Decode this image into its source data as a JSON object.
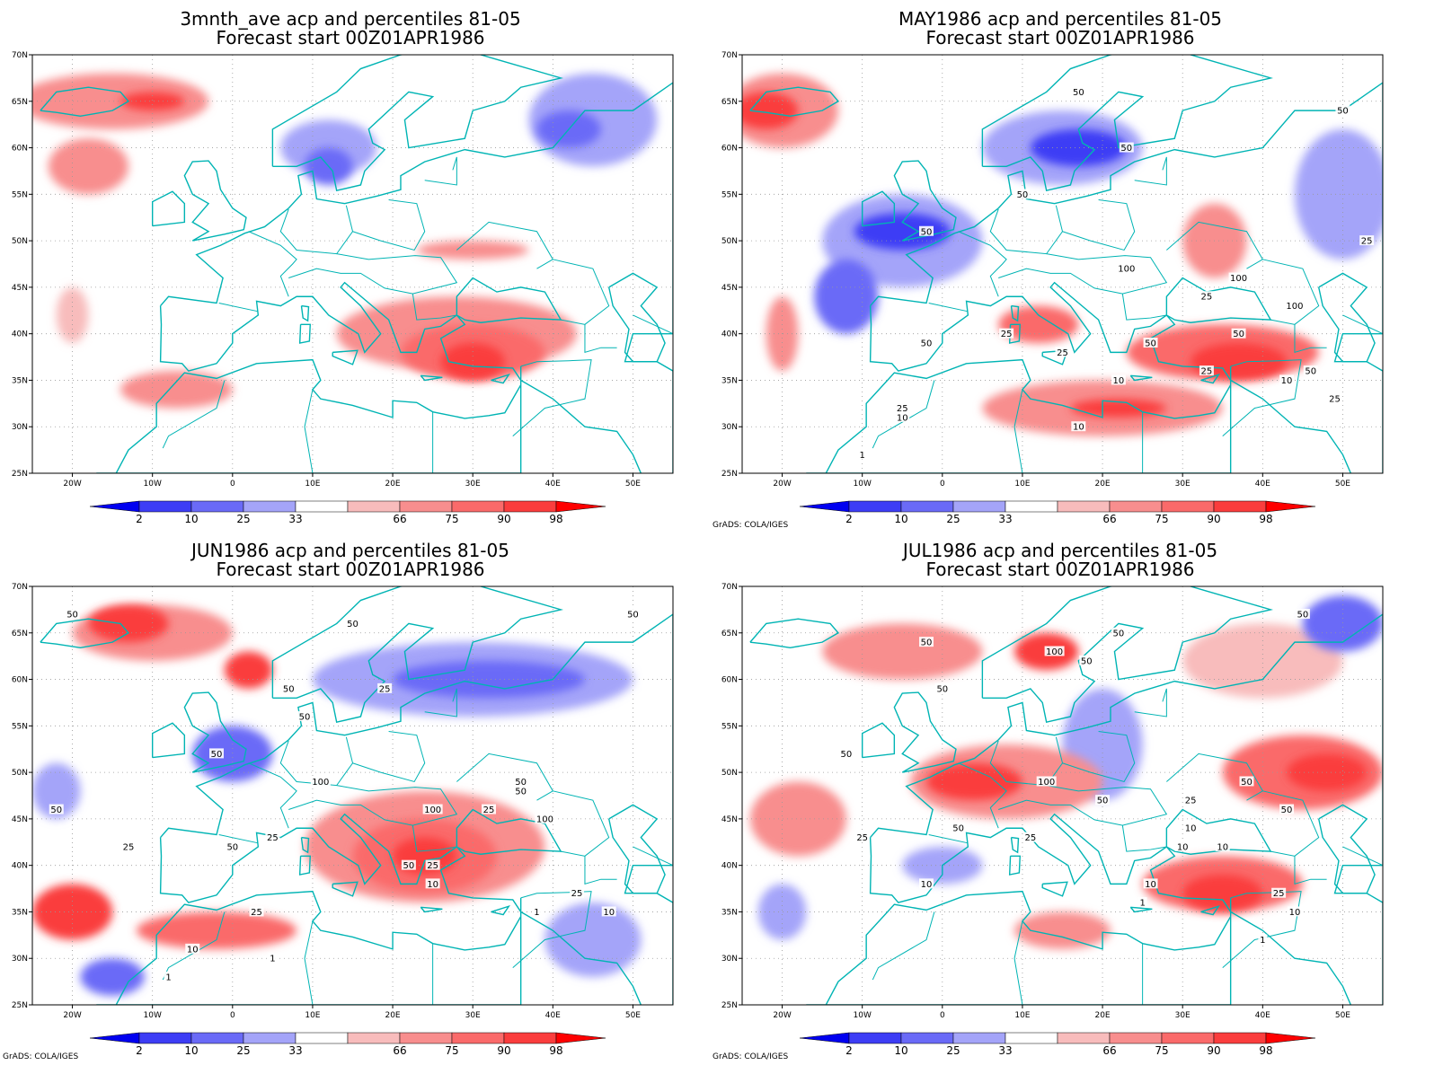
{
  "panels": [
    {
      "title_line1": "3mnth_ave acp and percentiles 81-05",
      "title_line2": "Forecast start 00Z01APR1986",
      "credit": "",
      "contour_labels": [],
      "patches": [
        {
          "lon": -15,
          "lat": 65,
          "rx": 12,
          "ry": 3,
          "color": "#f88e8e"
        },
        {
          "lon": -18,
          "lat": 58,
          "rx": 5,
          "ry": 3,
          "color": "#f88e8e"
        },
        {
          "lon": -10,
          "lat": 65,
          "rx": 4,
          "ry": 1,
          "color": "#fa3d3d"
        },
        {
          "lon": 12,
          "lat": 60,
          "rx": 6,
          "ry": 3,
          "color": "#a4a4f9"
        },
        {
          "lon": 12,
          "lat": 58,
          "rx": 3,
          "ry": 2,
          "color": "#6a6af7"
        },
        {
          "lon": 45,
          "lat": 63,
          "rx": 8,
          "ry": 5,
          "color": "#a4a4f9"
        },
        {
          "lon": 42,
          "lat": 62,
          "rx": 4,
          "ry": 2,
          "color": "#6a6af7"
        },
        {
          "lon": 28,
          "lat": 40,
          "rx": 15,
          "ry": 4,
          "color": "#f88e8e"
        },
        {
          "lon": 30,
          "lat": 38,
          "rx": 9,
          "ry": 3,
          "color": "#fa6a6a"
        },
        {
          "lon": 30,
          "lat": 37,
          "rx": 4,
          "ry": 2,
          "color": "#fa3d3d"
        },
        {
          "lon": 30,
          "lat": 49,
          "rx": 7,
          "ry": 1,
          "color": "#f88e8e"
        },
        {
          "lon": -7,
          "lat": 34,
          "rx": 7,
          "ry": 2,
          "color": "#f88e8e"
        },
        {
          "lon": -20,
          "lat": 42,
          "rx": 2,
          "ry": 3,
          "color": "#f8bcbc"
        }
      ]
    },
    {
      "title_line1": "MAY1986 acp and percentiles 81-05",
      "title_line2": "Forecast start 00Z01APR1986",
      "credit": "GrADS: COLA/IGES",
      "contour_labels": [
        {
          "text": "50",
          "lon": 17,
          "lat": 66
        },
        {
          "text": "50",
          "lon": 23,
          "lat": 60
        },
        {
          "text": "50",
          "lon": 50,
          "lat": 64
        },
        {
          "text": "50",
          "lon": 10,
          "lat": 55
        },
        {
          "text": "50",
          "lon": -2,
          "lat": 51
        },
        {
          "text": "100",
          "lon": 23,
          "lat": 47
        },
        {
          "text": "100",
          "lon": 37,
          "lat": 46
        },
        {
          "text": "25",
          "lon": 53,
          "lat": 50
        },
        {
          "text": "25",
          "lon": 33,
          "lat": 44
        },
        {
          "text": "100",
          "lon": 44,
          "lat": 43
        },
        {
          "text": "50",
          "lon": 37,
          "lat": 40
        },
        {
          "text": "25",
          "lon": 8,
          "lat": 40
        },
        {
          "text": "25",
          "lon": 15,
          "lat": 38
        },
        {
          "text": "50",
          "lon": -2,
          "lat": 39
        },
        {
          "text": "50",
          "lon": 26,
          "lat": 39
        },
        {
          "text": "25",
          "lon": 33,
          "lat": 36
        },
        {
          "text": "50",
          "lon": 46,
          "lat": 36
        },
        {
          "text": "10",
          "lon": 43,
          "lat": 35
        },
        {
          "text": "10",
          "lon": 22,
          "lat": 35
        },
        {
          "text": "25",
          "lon": 49,
          "lat": 33
        },
        {
          "text": "25",
          "lon": -5,
          "lat": 32
        },
        {
          "text": "10",
          "lon": -5,
          "lat": 31
        },
        {
          "text": "10",
          "lon": 17,
          "lat": 30
        },
        {
          "text": "1",
          "lon": -10,
          "lat": 27
        }
      ],
      "patches": [
        {
          "lon": -20,
          "lat": 64,
          "rx": 7,
          "ry": 4,
          "color": "#f88e8e"
        },
        {
          "lon": -22,
          "lat": 64,
          "rx": 4,
          "ry": 2,
          "color": "#fa3d3d"
        },
        {
          "lon": 15,
          "lat": 60,
          "rx": 10,
          "ry": 4,
          "color": "#a4a4f9"
        },
        {
          "lon": 17,
          "lat": 60,
          "rx": 6,
          "ry": 2,
          "color": "#3d3df5"
        },
        {
          "lon": -5,
          "lat": 50,
          "rx": 10,
          "ry": 5,
          "color": "#a4a4f9"
        },
        {
          "lon": -5,
          "lat": 51,
          "rx": 6,
          "ry": 2,
          "color": "#3d3df5"
        },
        {
          "lon": -12,
          "lat": 44,
          "rx": 4,
          "ry": 4,
          "color": "#6a6af7"
        },
        {
          "lon": 50,
          "lat": 55,
          "rx": 6,
          "ry": 7,
          "color": "#a4a4f9"
        },
        {
          "lon": 34,
          "lat": 50,
          "rx": 4,
          "ry": 4,
          "color": "#f88e8e"
        },
        {
          "lon": 35,
          "lat": 38,
          "rx": 12,
          "ry": 3,
          "color": "#fa6a6a"
        },
        {
          "lon": 37,
          "lat": 37,
          "rx": 6,
          "ry": 2,
          "color": "#fa3d3d"
        },
        {
          "lon": 20,
          "lat": 32,
          "rx": 15,
          "ry": 3,
          "color": "#f88e8e"
        },
        {
          "lon": 22,
          "lat": 32,
          "rx": 6,
          "ry": 1,
          "color": "#fa3d3d"
        },
        {
          "lon": 12,
          "lat": 41,
          "rx": 5,
          "ry": 2,
          "color": "#fa6a6a"
        },
        {
          "lon": -20,
          "lat": 40,
          "rx": 2,
          "ry": 4,
          "color": "#f88e8e"
        }
      ]
    },
    {
      "title_line1": "JUN1986 acp and percentiles 81-05",
      "title_line2": "Forecast start 00Z01APR1986",
      "credit": "GrADS: COLA/IGES",
      "contour_labels": [
        {
          "text": "50",
          "lon": -20,
          "lat": 67
        },
        {
          "text": "50",
          "lon": 15,
          "lat": 66
        },
        {
          "text": "50",
          "lon": 50,
          "lat": 67
        },
        {
          "text": "50",
          "lon": 7,
          "lat": 59
        },
        {
          "text": "25",
          "lon": 19,
          "lat": 59
        },
        {
          "text": "50",
          "lon": 9,
          "lat": 56
        },
        {
          "text": "50",
          "lon": -2,
          "lat": 52
        },
        {
          "text": "100",
          "lon": 11,
          "lat": 49
        },
        {
          "text": "50",
          "lon": -22,
          "lat": 46
        },
        {
          "text": "100",
          "lon": 25,
          "lat": 46
        },
        {
          "text": "50",
          "lon": 36,
          "lat": 49
        },
        {
          "text": "50",
          "lon": 36,
          "lat": 48
        },
        {
          "text": "25",
          "lon": 32,
          "lat": 46
        },
        {
          "text": "100",
          "lon": 39,
          "lat": 45
        },
        {
          "text": "25",
          "lon": 5,
          "lat": 43
        },
        {
          "text": "50",
          "lon": 0,
          "lat": 42
        },
        {
          "text": "25",
          "lon": -13,
          "lat": 42
        },
        {
          "text": "50",
          "lon": 22,
          "lat": 40
        },
        {
          "text": "25",
          "lon": 25,
          "lat": 40
        },
        {
          "text": "10",
          "lon": 25,
          "lat": 38
        },
        {
          "text": "25",
          "lon": 43,
          "lat": 37
        },
        {
          "text": "1",
          "lon": 38,
          "lat": 35
        },
        {
          "text": "10",
          "lon": 47,
          "lat": 35
        },
        {
          "text": "25",
          "lon": 3,
          "lat": 35
        },
        {
          "text": "10",
          "lon": -5,
          "lat": 31
        },
        {
          "text": "1",
          "lon": 5,
          "lat": 30
        },
        {
          "text": "1",
          "lon": -8,
          "lat": 28
        }
      ],
      "patches": [
        {
          "lon": -10,
          "lat": 65,
          "rx": 10,
          "ry": 3,
          "color": "#f88e8e"
        },
        {
          "lon": -13,
          "lat": 66,
          "rx": 5,
          "ry": 2,
          "color": "#fa3d3d"
        },
        {
          "lon": 2,
          "lat": 61,
          "rx": 3,
          "ry": 2,
          "color": "#fa3d3d"
        },
        {
          "lon": 30,
          "lat": 60,
          "rx": 20,
          "ry": 4,
          "color": "#a4a4f9"
        },
        {
          "lon": 32,
          "lat": 60,
          "rx": 12,
          "ry": 2,
          "color": "#6a6af7"
        },
        {
          "lon": 0,
          "lat": 52,
          "rx": 5,
          "ry": 3,
          "color": "#6a6af7"
        },
        {
          "lon": 24,
          "lat": 42,
          "rx": 15,
          "ry": 6,
          "color": "#f88e8e"
        },
        {
          "lon": 24,
          "lat": 41,
          "rx": 9,
          "ry": 4,
          "color": "#fa6a6a"
        },
        {
          "lon": 24,
          "lat": 41,
          "rx": 4,
          "ry": 2,
          "color": "#fa3d3d"
        },
        {
          "lon": -20,
          "lat": 35,
          "rx": 5,
          "ry": 3,
          "color": "#fa3d3d"
        },
        {
          "lon": -2,
          "lat": 33,
          "rx": 10,
          "ry": 2,
          "color": "#fa6a6a"
        },
        {
          "lon": 45,
          "lat": 32,
          "rx": 6,
          "ry": 4,
          "color": "#a4a4f9"
        },
        {
          "lon": -15,
          "lat": 28,
          "rx": 4,
          "ry": 2,
          "color": "#6a6af7"
        },
        {
          "lon": -22,
          "lat": 48,
          "rx": 3,
          "ry": 3,
          "color": "#a4a4f9"
        }
      ]
    },
    {
      "title_line1": "JUL1986 acp and percentiles 81-05",
      "title_line2": "Forecast start 00Z01APR1986",
      "credit": "GrADS: COLA/IGES",
      "contour_labels": [
        {
          "text": "50",
          "lon": 45,
          "lat": 67
        },
        {
          "text": "50",
          "lon": 22,
          "lat": 65
        },
        {
          "text": "50",
          "lon": -2,
          "lat": 64
        },
        {
          "text": "100",
          "lon": 14,
          "lat": 63
        },
        {
          "text": "50",
          "lon": 18,
          "lat": 62
        },
        {
          "text": "50",
          "lon": 0,
          "lat": 59
        },
        {
          "text": "50",
          "lon": -12,
          "lat": 52
        },
        {
          "text": "100",
          "lon": 13,
          "lat": 49
        },
        {
          "text": "50",
          "lon": 38,
          "lat": 49
        },
        {
          "text": "50",
          "lon": 20,
          "lat": 47
        },
        {
          "text": "25",
          "lon": 31,
          "lat": 47
        },
        {
          "text": "50",
          "lon": 43,
          "lat": 46
        },
        {
          "text": "10",
          "lon": 31,
          "lat": 44
        },
        {
          "text": "50",
          "lon": 2,
          "lat": 44
        },
        {
          "text": "25",
          "lon": 11,
          "lat": 43
        },
        {
          "text": "25",
          "lon": -10,
          "lat": 43
        },
        {
          "text": "10",
          "lon": 35,
          "lat": 42
        },
        {
          "text": "10",
          "lon": 30,
          "lat": 42
        },
        {
          "text": "10",
          "lon": -2,
          "lat": 38
        },
        {
          "text": "10",
          "lon": 26,
          "lat": 38
        },
        {
          "text": "1",
          "lon": 25,
          "lat": 36
        },
        {
          "text": "25",
          "lon": 42,
          "lat": 37
        },
        {
          "text": "10",
          "lon": 44,
          "lat": 35
        },
        {
          "text": "1",
          "lon": 40,
          "lat": 32
        }
      ],
      "patches": [
        {
          "lon": -5,
          "lat": 63,
          "rx": 10,
          "ry": 3,
          "color": "#f88e8e"
        },
        {
          "lon": 13,
          "lat": 63,
          "rx": 4,
          "ry": 2,
          "color": "#fa3d3d"
        },
        {
          "lon": 40,
          "lat": 62,
          "rx": 10,
          "ry": 4,
          "color": "#f8bcbc"
        },
        {
          "lon": 50,
          "lat": 66,
          "rx": 5,
          "ry": 3,
          "color": "#6a6af7"
        },
        {
          "lon": 20,
          "lat": 53,
          "rx": 5,
          "ry": 6,
          "color": "#a4a4f9"
        },
        {
          "lon": 8,
          "lat": 49,
          "rx": 12,
          "ry": 4,
          "color": "#f88e8e"
        },
        {
          "lon": 4,
          "lat": 49,
          "rx": 6,
          "ry": 2,
          "color": "#fa3d3d"
        },
        {
          "lon": -18,
          "lat": 45,
          "rx": 6,
          "ry": 4,
          "color": "#f88e8e"
        },
        {
          "lon": 45,
          "lat": 50,
          "rx": 10,
          "ry": 4,
          "color": "#fa6a6a"
        },
        {
          "lon": 48,
          "lat": 50,
          "rx": 5,
          "ry": 2,
          "color": "#fa3d3d"
        },
        {
          "lon": 35,
          "lat": 38,
          "rx": 10,
          "ry": 3,
          "color": "#fa6a6a"
        },
        {
          "lon": 35,
          "lat": 37,
          "rx": 5,
          "ry": 2,
          "color": "#fa3d3d"
        },
        {
          "lon": -20,
          "lat": 35,
          "rx": 3,
          "ry": 3,
          "color": "#a4a4f9"
        },
        {
          "lon": 15,
          "lat": 33,
          "rx": 6,
          "ry": 2,
          "color": "#f88e8e"
        },
        {
          "lon": 0,
          "lat": 40,
          "rx": 5,
          "ry": 2,
          "color": "#a4a4f9"
        }
      ]
    }
  ],
  "axes": {
    "lon_min": -25,
    "lon_max": 55,
    "lat_min": 25,
    "lat_max": 70,
    "lon_ticks": [
      {
        "v": -20,
        "label": "20W"
      },
      {
        "v": -10,
        "label": "10W"
      },
      {
        "v": 0,
        "label": "0"
      },
      {
        "v": 10,
        "label": "10E"
      },
      {
        "v": 20,
        "label": "20E"
      },
      {
        "v": 30,
        "label": "30E"
      },
      {
        "v": 40,
        "label": "40E"
      },
      {
        "v": 50,
        "label": "50E"
      }
    ],
    "lat_ticks": [
      {
        "v": 25,
        "label": "25N"
      },
      {
        "v": 30,
        "label": "30N"
      },
      {
        "v": 35,
        "label": "35N"
      },
      {
        "v": 40,
        "label": "40N"
      },
      {
        "v": 45,
        "label": "45N"
      },
      {
        "v": 50,
        "label": "50N"
      },
      {
        "v": 55,
        "label": "55N"
      },
      {
        "v": 60,
        "label": "60N"
      },
      {
        "v": 65,
        "label": "65N"
      },
      {
        "v": 70,
        "label": "70N"
      }
    ]
  },
  "colorbar": {
    "labels": [
      "2",
      "10",
      "25",
      "33",
      "66",
      "75",
      "90",
      "98"
    ],
    "colors": [
      "#0000f0",
      "#3d3df5",
      "#6a6af7",
      "#a4a4f9",
      "#ffffff",
      "#f8bcbc",
      "#f88e8e",
      "#fa6a6a",
      "#fa3d3d",
      "#ff0000"
    ]
  },
  "colors": {
    "coast": "#00b4b4",
    "contour": "#000000",
    "grid": "#999999"
  }
}
